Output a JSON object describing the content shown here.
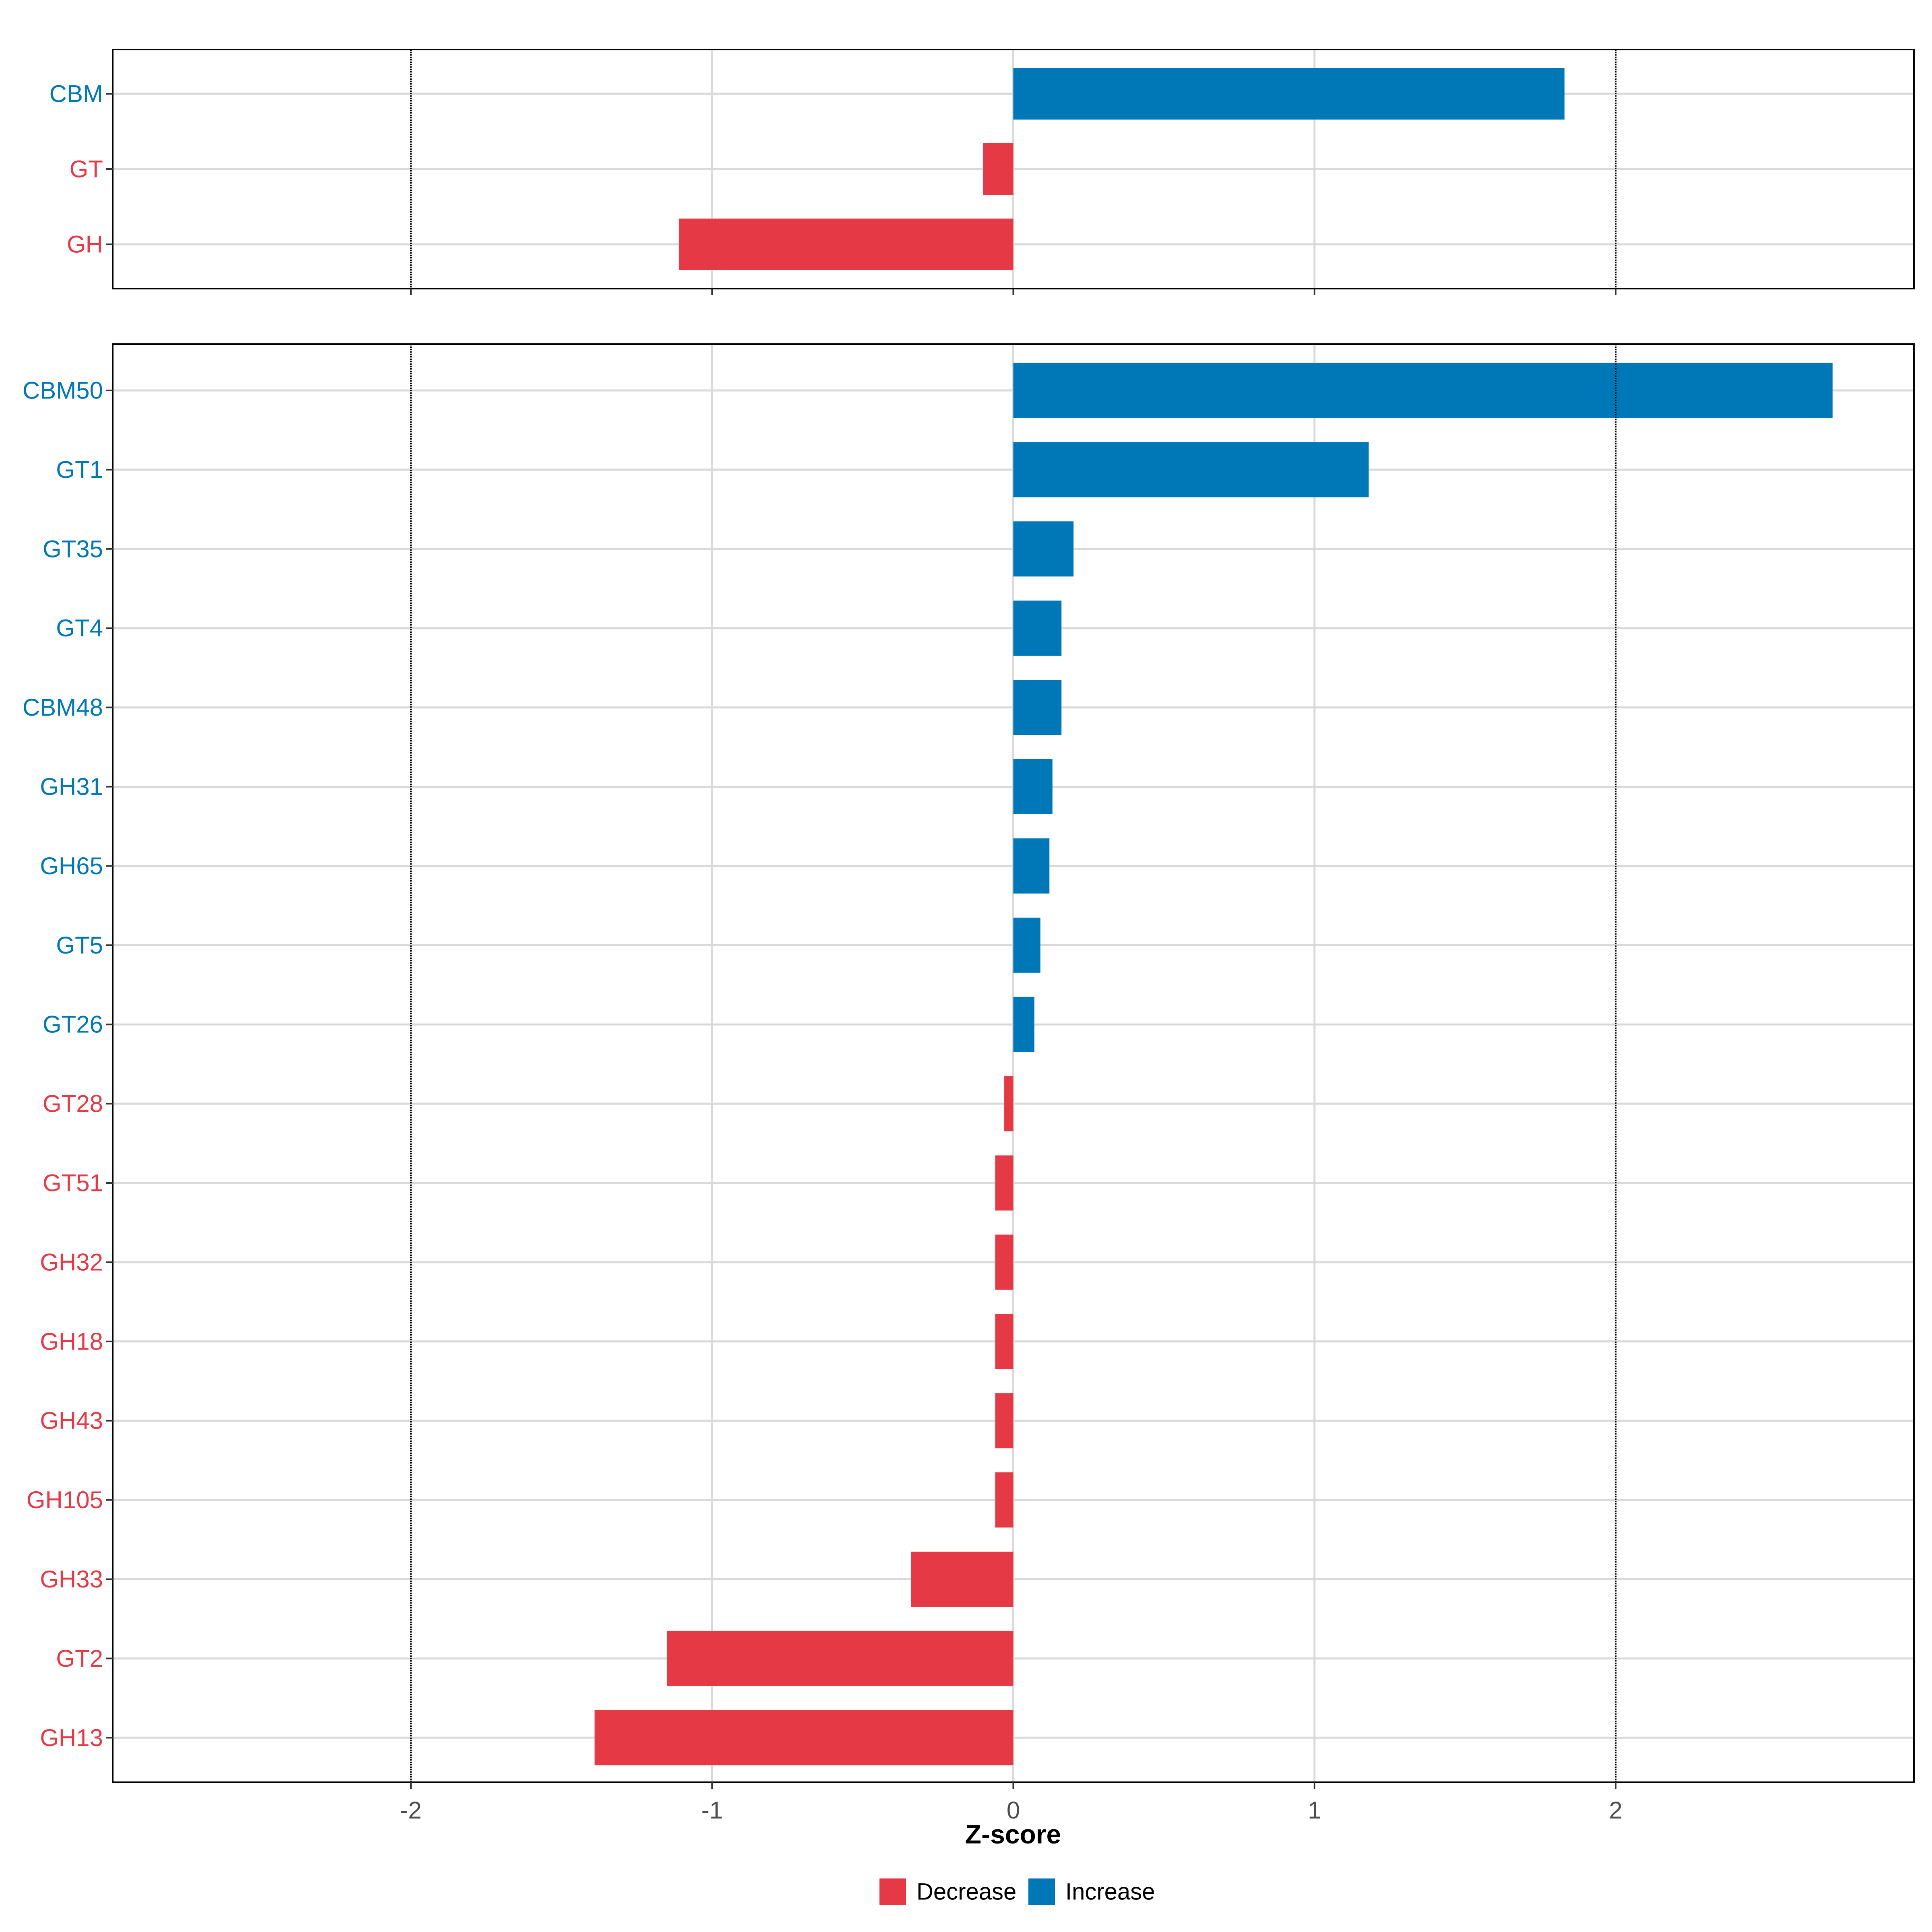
{
  "colors": {
    "increase": "#0077B6",
    "decrease": "#E63946",
    "grid": "#D9D9D9",
    "reference_line": "#000000"
  },
  "chart_data": [
    {
      "type": "bar",
      "orientation": "horizontal",
      "panel": "top",
      "categories": [
        "CBM",
        "GT",
        "GH"
      ],
      "values": [
        1.83,
        -0.1,
        -1.11
      ],
      "groups": [
        "Increase",
        "Decrease",
        "Decrease"
      ],
      "xlim": [
        -2.99,
        2.99
      ],
      "reference_lines": [
        -2,
        2
      ],
      "grid": true
    },
    {
      "type": "bar",
      "orientation": "horizontal",
      "panel": "bottom",
      "categories": [
        "CBM50",
        "GT1",
        "GT35",
        "GT4",
        "CBM48",
        "GH31",
        "GH65",
        "GT5",
        "GT26",
        "GT28",
        "GT51",
        "GH32",
        "GH18",
        "GH43",
        "GH105",
        "GH33",
        "GT2",
        "GH13"
      ],
      "values": [
        2.72,
        1.18,
        0.2,
        0.16,
        0.16,
        0.13,
        0.12,
        0.09,
        0.07,
        -0.03,
        -0.06,
        -0.06,
        -0.06,
        -0.06,
        -0.06,
        -0.34,
        -1.15,
        -1.39
      ],
      "groups": [
        "Increase",
        "Increase",
        "Increase",
        "Increase",
        "Increase",
        "Increase",
        "Increase",
        "Increase",
        "Increase",
        "Decrease",
        "Decrease",
        "Decrease",
        "Decrease",
        "Decrease",
        "Decrease",
        "Decrease",
        "Decrease",
        "Decrease"
      ],
      "xlim": [
        -2.99,
        2.99
      ],
      "reference_lines": [
        -2,
        2
      ],
      "grid": true,
      "x_ticks": [
        "-2",
        "-1",
        "0",
        "1",
        "2"
      ],
      "xlabel": "Z-score"
    }
  ],
  "legend": {
    "position": "bottom",
    "items": [
      {
        "label": "Decrease",
        "color_key": "decrease"
      },
      {
        "label": "Increase",
        "color_key": "increase"
      }
    ]
  }
}
